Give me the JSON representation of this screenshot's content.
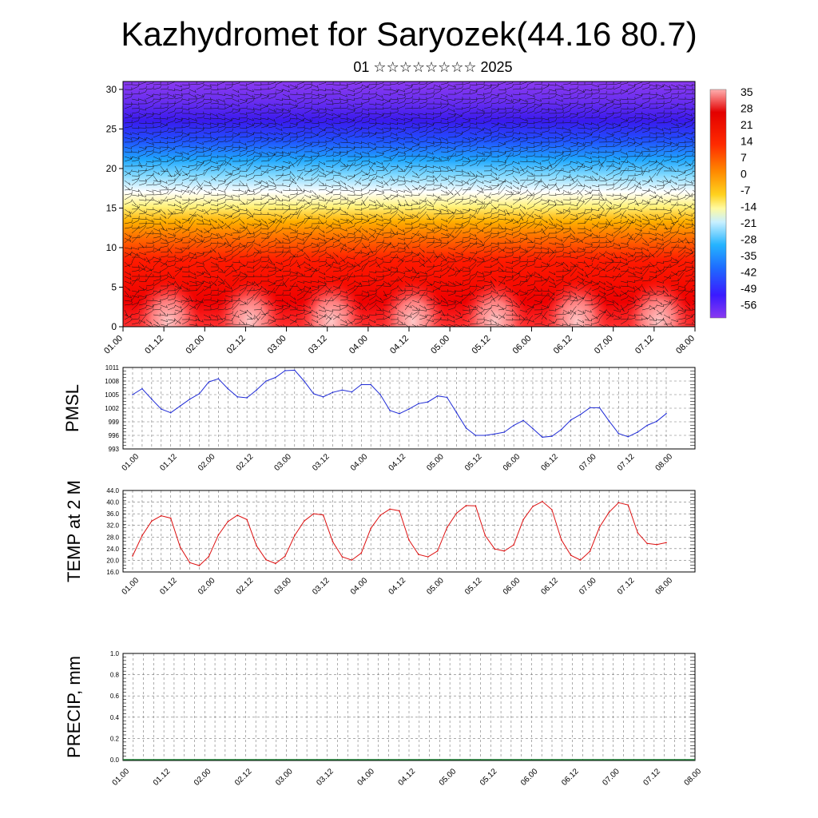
{
  "page": {
    "title": "Kazhydromet for Saryozek(44.16 80.7)",
    "subtitle": "01 ☆☆☆☆☆☆☆☆ 2025"
  },
  "colors": {
    "pmsl_line": "#1f2bd6",
    "temp_line": "#dd1111",
    "colorbar_ramp": [
      "#7b2cf0",
      "#3a1aff",
      "#1e6cff",
      "#25b4ff",
      "#a6e6ff",
      "#fffaa0",
      "#ffd21e",
      "#ff8a00",
      "#ff2a00",
      "#e30000",
      "#ffb0b0"
    ]
  },
  "chart_data": [
    {
      "type": "heatmap",
      "name": "cross-section",
      "description_shown": "temperature cross-section with wind barbs",
      "x_ticks": [
        "01.00",
        "01.12",
        "02.00",
        "02.12",
        "03.00",
        "03.12",
        "04.00",
        "04.12",
        "05.00",
        "05.12",
        "06.00",
        "06.12",
        "07.00",
        "07.12",
        "08.00"
      ],
      "y_ticks": [
        "0",
        "5",
        "10",
        "15",
        "20",
        "25",
        "30"
      ],
      "ylim": [
        0,
        31
      ],
      "colorbar_labels": [
        "35",
        "28",
        "21",
        "14",
        "7",
        "0",
        "-7",
        "-14",
        "-21",
        "-28",
        "-35",
        "-42",
        "-49",
        "-56"
      ]
    },
    {
      "type": "line",
      "ylabel": "PMSL",
      "x_ticks": [
        "01.00",
        "01.12",
        "02.00",
        "02.12",
        "03.00",
        "03.12",
        "04.00",
        "04.12",
        "05.00",
        "05.12",
        "06.00",
        "06.12",
        "07.00",
        "07.12",
        "08.00"
      ],
      "y_ticks": [
        "1011",
        "1008",
        "1005",
        "1002",
        "999",
        "996",
        "993"
      ],
      "ylim": [
        993,
        1011
      ],
      "x": [
        0,
        3,
        6,
        9,
        12,
        15,
        18,
        21,
        24,
        27,
        30,
        33,
        36,
        39,
        42,
        45,
        48,
        51,
        54,
        57,
        60,
        63,
        66,
        69,
        72,
        75,
        78,
        81,
        84,
        87,
        90,
        93,
        96,
        99,
        102,
        105,
        108,
        111,
        114,
        117,
        120,
        123,
        126,
        129,
        132,
        135,
        138,
        141,
        144,
        147,
        150,
        153,
        156,
        159,
        162,
        165,
        168
      ],
      "values": [
        1005,
        1006.3,
        1004,
        1001.8,
        1001,
        1002.5,
        1004,
        1005.2,
        1007.8,
        1008.5,
        1006.3,
        1004.5,
        1004.3,
        1006,
        1008,
        1008.8,
        1010.3,
        1010.4,
        1008,
        1005.2,
        1004.5,
        1005.5,
        1006,
        1005.6,
        1007.2,
        1007.2,
        1005,
        1001.5,
        1000.8,
        1001.8,
        1003,
        1003.4,
        1004.7,
        1004.4,
        1001,
        997.6,
        996,
        996,
        996.3,
        996.7,
        998.2,
        999.3,
        997.5,
        995.6,
        995.8,
        997.3,
        999.4,
        1000.6,
        1002.1,
        1002.1,
        999.2,
        996.4,
        995.7,
        996.7,
        998.2,
        999.1,
        1000.8
      ]
    },
    {
      "type": "line",
      "ylabel": "TEMP at 2 M",
      "x_ticks": [
        "01.00",
        "01.12",
        "02.00",
        "02.12",
        "03.00",
        "03.12",
        "04.00",
        "04.12",
        "05.00",
        "05.12",
        "06.00",
        "06.12",
        "07.00",
        "07.12",
        "08.00"
      ],
      "y_ticks": [
        "44.0",
        "40.0",
        "36.0",
        "32.0",
        "28.0",
        "24.0",
        "20.0",
        "16.0"
      ],
      "ylim": [
        16,
        44
      ],
      "x": [
        0,
        3,
        6,
        9,
        12,
        15,
        18,
        21,
        24,
        27,
        30,
        33,
        36,
        39,
        42,
        45,
        48,
        51,
        54,
        57,
        60,
        63,
        66,
        69,
        72,
        75,
        78,
        81,
        84,
        87,
        90,
        93,
        96,
        99,
        102,
        105,
        108,
        111,
        114,
        117,
        120,
        123,
        126,
        129,
        132,
        135,
        138,
        141,
        144,
        147,
        150,
        153,
        156,
        159,
        162,
        165,
        168
      ],
      "values": [
        21.5,
        28.5,
        33.5,
        35.3,
        34.5,
        24.5,
        19.2,
        18.2,
        21.3,
        28.7,
        33.3,
        35.5,
        34,
        25,
        20.2,
        18.9,
        21.4,
        28.5,
        33.5,
        36,
        35.6,
        26.4,
        21.2,
        20.1,
        22.5,
        31,
        35.5,
        37.6,
        37,
        27,
        22,
        21.2,
        23.2,
        31.3,
        36.2,
        38.8,
        38.7,
        28.5,
        23.9,
        23.2,
        25.3,
        34,
        38.5,
        40.2,
        37.4,
        27,
        21.7,
        20.1,
        23.1,
        31.4,
        36.5,
        39.8,
        39,
        29.5,
        25.8,
        25.4,
        26.1
      ]
    },
    {
      "type": "line",
      "ylabel": "PRECIP, mm",
      "x_ticks": [
        "01.00",
        "01.12",
        "02.00",
        "02.12",
        "03.00",
        "03.12",
        "04.00",
        "04.12",
        "05.00",
        "05.12",
        "06.00",
        "06.12",
        "07.00",
        "07.12",
        "08.00"
      ],
      "y_ticks": [
        "1.0",
        "0.8",
        "0.6",
        "0.4",
        "0.2",
        "0.0"
      ],
      "ylim": [
        0,
        1
      ]
    }
  ]
}
